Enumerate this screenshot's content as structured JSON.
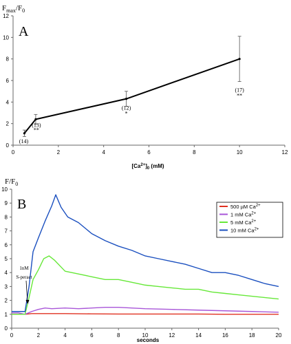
{
  "chart_data": [
    {
      "type": "line",
      "panel_label": "A",
      "ylabel_main": "F",
      "ylabel_sub1": "max",
      "ylabel_mid": "/F",
      "ylabel_sub2": "0",
      "xlabel_pre": "[Ca",
      "xlabel_sup": "2+",
      "xlabel_mid": "]",
      "xlabel_sub": "0",
      "xlabel_post": " (mM)",
      "xlim": [
        0,
        12
      ],
      "ylim": [
        0,
        12
      ],
      "xticks": [
        "0",
        "2",
        "4",
        "6",
        "8",
        "10",
        "12"
      ],
      "yticks": [
        "0",
        "2",
        "4",
        "6",
        "8",
        "10",
        "12"
      ],
      "grid": false,
      "series": [
        {
          "x": [
            0.5,
            1,
            5,
            10
          ],
          "y": [
            1.1,
            2.4,
            4.3,
            8.0
          ],
          "error": [
            0.3,
            0.45,
            0.7,
            2.1
          ],
          "color": "#000000"
        }
      ],
      "annotations": [
        {
          "text": "(14)",
          "x": 0.5
        },
        {
          "text": "(13)",
          "x": 1
        },
        {
          "text": "**",
          "x": 1
        },
        {
          "text": "(12)",
          "x": 5
        },
        {
          "text": "*",
          "x": 5
        },
        {
          "text": "(17)",
          "x": 10
        },
        {
          "text": "**",
          "x": 10
        }
      ]
    },
    {
      "type": "line",
      "panel_label": "B",
      "ylabel_main": "F/F",
      "ylabel_sub": "0",
      "xlabel": "seconds",
      "xlim": [
        0,
        20
      ],
      "ylim": [
        0,
        10
      ],
      "xticks": [
        "0",
        "2",
        "4",
        "6",
        "8",
        "10",
        "12",
        "14",
        "16",
        "18",
        "20"
      ],
      "yticks": [
        "0",
        "1",
        "2",
        "3",
        "4",
        "5",
        "6",
        "7",
        "8",
        "9",
        "10"
      ],
      "grid": false,
      "legend_position": "right",
      "annotation_line1": "1nM",
      "annotation_line2": "S-peract",
      "series": [
        {
          "name_pre": "500 µM Ca",
          "name_sup": "2+",
          "color": "#e03020",
          "x": [
            0,
            0.5,
            1,
            1.5,
            2,
            3,
            4,
            6,
            8,
            10,
            12,
            14,
            16,
            18,
            20
          ],
          "y": [
            1.0,
            1.0,
            1.0,
            1.05,
            1.05,
            1.05,
            1.05,
            1.03,
            1.02,
            1.02,
            1.02,
            1.02,
            1.0,
            1.0,
            1.0
          ]
        },
        {
          "name_pre": "1 mM Ca",
          "name_sup": "2+",
          "color": "#a855d8",
          "x": [
            0,
            0.5,
            1,
            1.5,
            2,
            2.5,
            3,
            4,
            5,
            6,
            7,
            8,
            9,
            10,
            12,
            14,
            16,
            18,
            20
          ],
          "y": [
            1.1,
            1.1,
            1.0,
            1.2,
            1.35,
            1.45,
            1.4,
            1.45,
            1.4,
            1.45,
            1.5,
            1.5,
            1.45,
            1.4,
            1.35,
            1.3,
            1.25,
            1.2,
            1.15
          ]
        },
        {
          "name_pre": "5 mM Ca",
          "name_sup": "2+",
          "color": "#66e838",
          "x": [
            0,
            0.5,
            1,
            1.3,
            1.6,
            2,
            2.4,
            2.8,
            3.2,
            4,
            5,
            6,
            7,
            8,
            9,
            10,
            11,
            12,
            13,
            14,
            15,
            16,
            17,
            18,
            19,
            20
          ],
          "y": [
            1.0,
            1.0,
            1.0,
            2.2,
            3.5,
            4.2,
            5.0,
            5.2,
            4.9,
            4.1,
            3.9,
            3.7,
            3.5,
            3.5,
            3.3,
            3.1,
            3.0,
            2.9,
            2.8,
            2.8,
            2.6,
            2.5,
            2.4,
            2.3,
            2.2,
            2.1
          ]
        },
        {
          "name_pre": "10 mM Ca",
          "name_sup": "2+",
          "color": "#1a4fbf",
          "x": [
            0,
            0.5,
            1,
            1.3,
            1.6,
            2,
            2.5,
            3,
            3.3,
            3.7,
            4.2,
            5,
            6,
            7,
            8,
            9,
            10,
            11,
            12,
            13,
            14,
            15,
            16,
            17,
            18,
            19,
            20
          ],
          "y": [
            1.2,
            1.2,
            1.2,
            3.0,
            5.5,
            6.5,
            7.7,
            8.8,
            9.6,
            8.7,
            8.0,
            7.6,
            6.8,
            6.3,
            5.9,
            5.6,
            5.2,
            5.0,
            4.8,
            4.6,
            4.3,
            4.0,
            4.0,
            3.8,
            3.5,
            3.2,
            3.0
          ]
        }
      ]
    }
  ]
}
